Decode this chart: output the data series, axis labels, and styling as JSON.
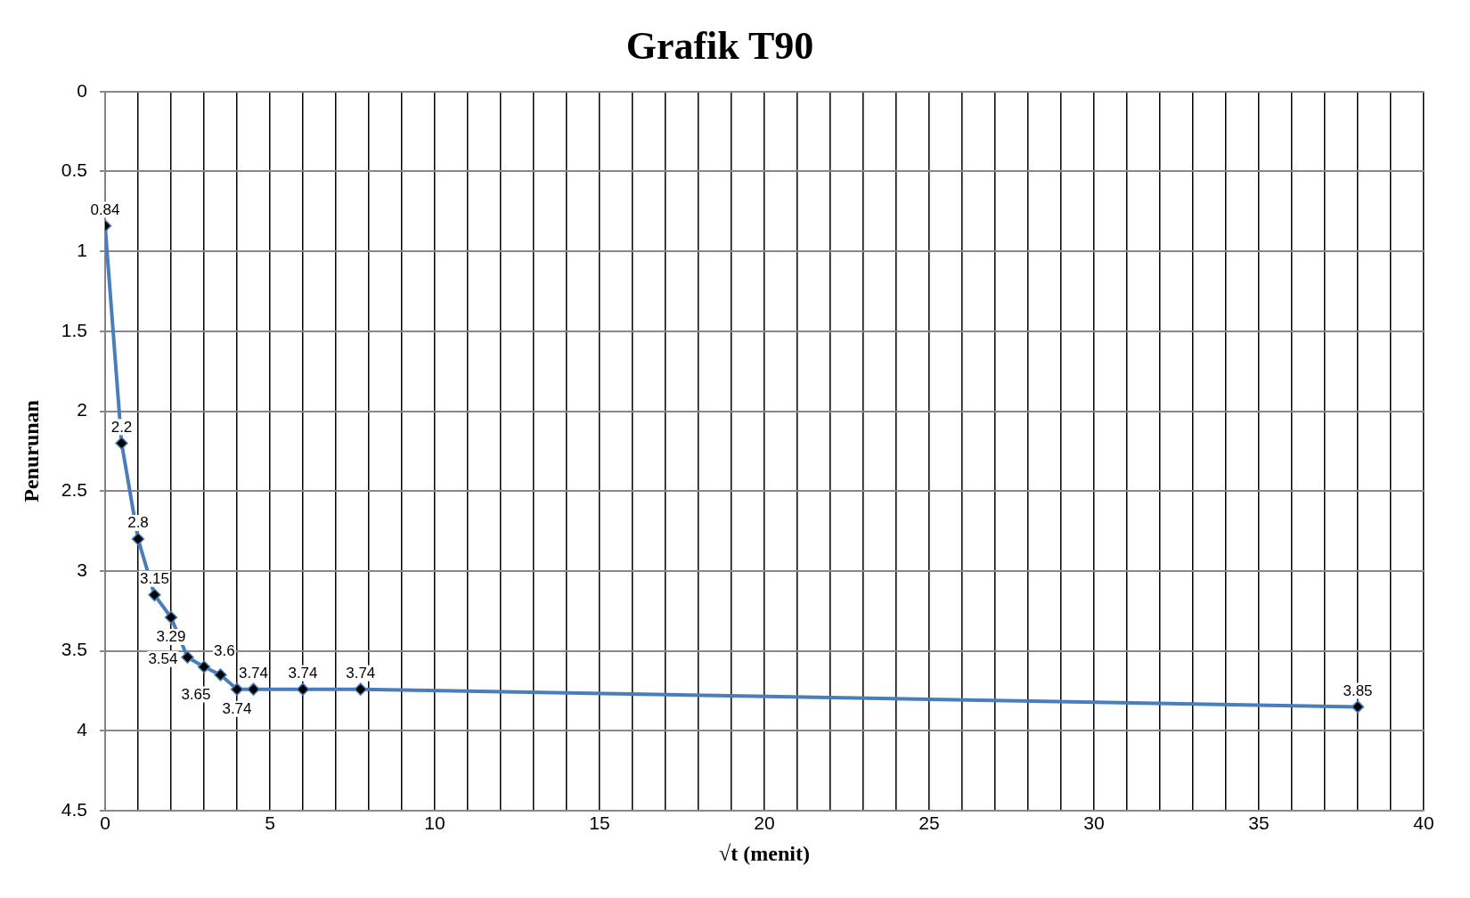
{
  "chart_data": {
    "type": "line",
    "title": "Grafik T90",
    "xlabel": "√t (menit)",
    "ylabel": "Penurunan",
    "x": [
      0,
      0.5,
      1,
      1.5,
      2,
      2.5,
      3,
      3.5,
      4,
      4.5,
      6,
      7.75,
      38
    ],
    "series": [
      {
        "color": "#4a7ebb",
        "values": [
          0.84,
          2.2,
          2.8,
          3.15,
          3.29,
          3.54,
          3.6,
          3.65,
          3.74,
          3.74,
          3.74,
          3.74,
          3.85
        ]
      }
    ],
    "xlim": [
      0,
      40
    ],
    "xticks": [
      0,
      {
        "value": 1,
        "label": null
      },
      {
        "value": 2,
        "label": null
      },
      {
        "value": 3,
        "label": null
      },
      {
        "value": 4,
        "label": null
      },
      5,
      {
        "value": 6,
        "label": null
      },
      {
        "value": 7,
        "label": null
      },
      {
        "value": 8,
        "label": null
      },
      {
        "value": 9,
        "label": null
      },
      10,
      {
        "value": 11,
        "label": null
      },
      {
        "value": 12,
        "label": null
      },
      {
        "value": 13,
        "label": null
      },
      {
        "value": 14,
        "label": null
      },
      15,
      {
        "value": 16,
        "label": null
      },
      {
        "value": 17,
        "label": null
      },
      {
        "value": 18,
        "label": null
      },
      {
        "value": 19,
        "label": null
      },
      20,
      {
        "value": 21,
        "label": null
      },
      {
        "value": 22,
        "label": null
      },
      {
        "value": 23,
        "label": null
      },
      {
        "value": 24,
        "label": null
      },
      25,
      {
        "value": 26,
        "label": null
      },
      {
        "value": 27,
        "label": null
      },
      {
        "value": 28,
        "label": null
      },
      {
        "value": 29,
        "label": null
      },
      30,
      {
        "value": 31,
        "label": null
      },
      {
        "value": 32,
        "label": null
      },
      {
        "value": 33,
        "label": null
      },
      {
        "value": 34,
        "label": null
      },
      35,
      {
        "value": 36,
        "label": null
      },
      {
        "value": 37,
        "label": null
      },
      {
        "value": 38,
        "label": null
      },
      {
        "value": 39,
        "label": null
      },
      40
    ],
    "ylim": [
      4.5,
      0
    ],
    "yticks": [
      0,
      0.5,
      1,
      1.5,
      2,
      2.5,
      3,
      3.5,
      4,
      4.5
    ],
    "grid": true,
    "legend": false,
    "marker": "diamond",
    "line_style": "solid",
    "data_labels": true
  }
}
